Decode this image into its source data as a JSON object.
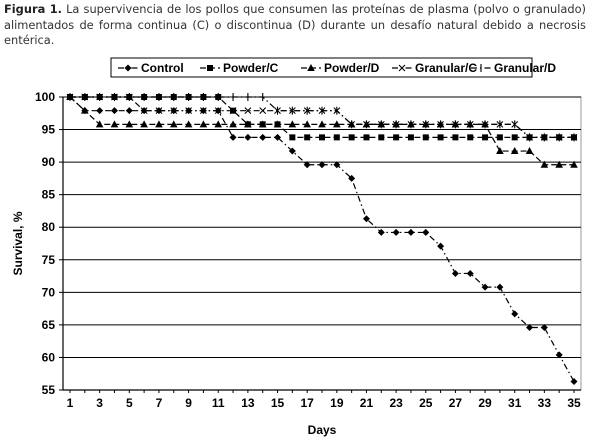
{
  "caption": {
    "label": "Figura  1.",
    "text": " La supervivencia de los pollos que consumen las proteínas de plasma (polvo o granulado) alimentados de forma continua (C) o discontinua (D) durante un desafío natural debido a necrosis entérica."
  },
  "chart_data": {
    "type": "line",
    "xlabel": "Days",
    "ylabel": "Survival, %",
    "ylim": [
      55,
      100
    ],
    "xlim": [
      1,
      35
    ],
    "x_ticks": [
      1,
      3,
      5,
      7,
      9,
      11,
      13,
      15,
      17,
      19,
      21,
      23,
      25,
      27,
      29,
      31,
      33,
      35
    ],
    "y_ticks": [
      55,
      60,
      65,
      70,
      75,
      80,
      85,
      90,
      95,
      100
    ],
    "grid": "horizontal",
    "legend_position": "top",
    "x": [
      1,
      2,
      3,
      4,
      5,
      6,
      7,
      8,
      9,
      10,
      11,
      12,
      13,
      14,
      15,
      16,
      17,
      18,
      19,
      20,
      21,
      22,
      23,
      24,
      25,
      26,
      27,
      28,
      29,
      30,
      31,
      32,
      33,
      34,
      35
    ],
    "series": [
      {
        "name": "Control",
        "marker": "diamond",
        "dash": "dashdot",
        "values": [
          100,
          97.9,
          97.9,
          97.9,
          97.9,
          97.9,
          97.9,
          97.9,
          97.9,
          97.9,
          97.9,
          93.8,
          93.8,
          93.8,
          93.8,
          91.7,
          89.6,
          89.6,
          89.6,
          87.5,
          81.3,
          79.2,
          79.2,
          79.2,
          79.2,
          77.1,
          72.9,
          72.9,
          70.8,
          70.8,
          66.7,
          64.6,
          64.6,
          60.4,
          56.3
        ]
      },
      {
        "name": "Powder/C",
        "marker": "square",
        "dash": "dash",
        "values": [
          100,
          100,
          100,
          100,
          100,
          100,
          100,
          100,
          100,
          100,
          100,
          97.9,
          95.8,
          95.8,
          95.8,
          93.8,
          93.8,
          93.8,
          93.8,
          93.8,
          93.8,
          93.8,
          93.8,
          93.8,
          93.8,
          93.8,
          93.8,
          93.8,
          93.8,
          93.8,
          93.8,
          93.8,
          93.8,
          93.8,
          93.8
        ]
      },
      {
        "name": "Powder/D",
        "marker": "triangle",
        "dash": "dash",
        "values": [
          100,
          97.9,
          95.8,
          95.8,
          95.8,
          95.8,
          95.8,
          95.8,
          95.8,
          95.8,
          95.8,
          95.8,
          95.8,
          95.8,
          95.8,
          95.8,
          95.8,
          95.8,
          95.8,
          95.8,
          95.8,
          95.8,
          95.8,
          95.8,
          95.8,
          95.8,
          95.8,
          95.8,
          95.8,
          91.7,
          91.7,
          91.7,
          89.6,
          89.6,
          89.6
        ]
      },
      {
        "name": "Granular/C",
        "marker": "x",
        "dash": "dashdot",
        "values": [
          100,
          100,
          100,
          100,
          100,
          97.9,
          97.9,
          97.9,
          97.9,
          97.9,
          97.9,
          97.9,
          97.9,
          97.9,
          97.9,
          97.9,
          97.9,
          97.9,
          97.9,
          95.8,
          95.8,
          95.8,
          95.8,
          95.8,
          95.8,
          95.8,
          95.8,
          95.8,
          95.8,
          95.8,
          95.8,
          93.8,
          93.8,
          93.8,
          93.8
        ]
      },
      {
        "name": "Granular/D",
        "marker": "plus",
        "dash": "dashdot",
        "values": [
          100,
          100,
          100,
          100,
          100,
          100,
          100,
          100,
          100,
          100,
          100,
          100,
          100,
          100,
          97.9,
          97.9,
          97.9,
          97.9,
          97.9,
          95.8,
          95.8,
          95.8,
          95.8,
          95.8,
          95.8,
          95.8,
          95.8,
          95.8,
          95.8,
          95.8,
          95.8,
          93.8,
          93.8,
          93.8,
          93.8
        ]
      }
    ]
  }
}
